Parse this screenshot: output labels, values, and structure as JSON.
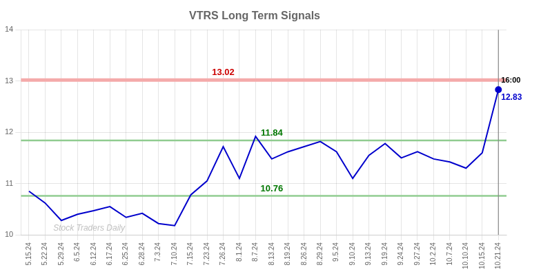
{
  "chart_data": {
    "type": "line",
    "title": "VTRS Long Term Signals",
    "categories": [
      "5.15.24",
      "5.22.24",
      "5.29.24",
      "6.5.24",
      "6.12.24",
      "6.17.24",
      "6.25.24",
      "6.28.24",
      "7.3.24",
      "7.10.24",
      "7.15.24",
      "7.23.24",
      "7.26.24",
      "8.1.24",
      "8.7.24",
      "8.13.24",
      "8.19.24",
      "8.26.24",
      "8.29.24",
      "9.5.24",
      "9.10.24",
      "9.13.24",
      "9.19.24",
      "9.24.24",
      "9.27.24",
      "10.2.24",
      "10.7.24",
      "10.10.24",
      "10.15.24",
      "10.21.24"
    ],
    "values": [
      10.85,
      10.62,
      10.28,
      10.4,
      10.47,
      10.55,
      10.34,
      10.42,
      10.22,
      10.18,
      10.78,
      11.05,
      11.72,
      11.1,
      11.92,
      11.48,
      11.62,
      11.72,
      11.82,
      11.62,
      11.1,
      11.55,
      11.78,
      11.5,
      11.62,
      11.48,
      11.42,
      11.3,
      11.6,
      12.83
    ],
    "color": "#0000cc",
    "ylim": [
      10.0,
      14.0
    ],
    "yticks": [
      10,
      11,
      12,
      13,
      14
    ],
    "grid": true,
    "reference_lines": [
      {
        "value": 13.02,
        "color": "#f4aaaa",
        "label": "13.02",
        "label_color": "#cc0000",
        "label_x": "7.26.24"
      },
      {
        "value": 11.84,
        "color": "#90cc90",
        "label": "11.84",
        "label_color": "#007700",
        "label_x": "8.13.24"
      },
      {
        "value": 10.76,
        "color": "#90cc90",
        "label": "10.76",
        "label_color": "#007700",
        "label_x": "8.13.24"
      }
    ],
    "annotations": [
      {
        "text": "16:00",
        "x": "10.21.24",
        "color": "#000000"
      },
      {
        "text": "12.83",
        "x": "10.21.24",
        "y": 12.83,
        "color": "#0000cc"
      },
      {
        "text": "Stock Traders Daily",
        "color": "#c0c0c0"
      }
    ]
  }
}
